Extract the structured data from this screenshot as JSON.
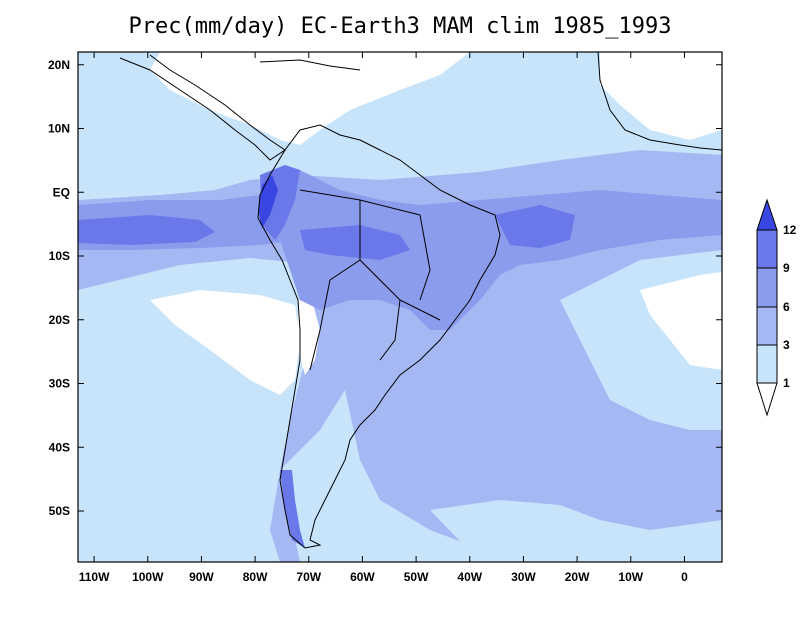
{
  "title": "Prec(mm/day) EC-Earth3 MAM clim 1985_1993",
  "map": {
    "projection": "latlon",
    "lon_range": [
      -113,
      7
    ],
    "lat_range": [
      -58,
      22
    ],
    "x_ticks": [
      "110W",
      "100W",
      "90W",
      "80W",
      "70W",
      "60W",
      "50W",
      "40W",
      "30W",
      "20W",
      "10W",
      "0"
    ],
    "y_ticks": [
      "20N",
      "10N",
      "EQ",
      "10S",
      "20S",
      "30S",
      "40S",
      "50S"
    ]
  },
  "colorbar": {
    "levels": [
      "1",
      "3",
      "6",
      "9",
      "12"
    ],
    "colors": {
      "below_1": "#ffffff",
      "1_3": "#c8e4fb",
      "3_6": "#a6b8f3",
      "6_9": "#8b9cec",
      "9_12": "#6a78ea",
      "above_12": "#3a46e2"
    }
  }
}
